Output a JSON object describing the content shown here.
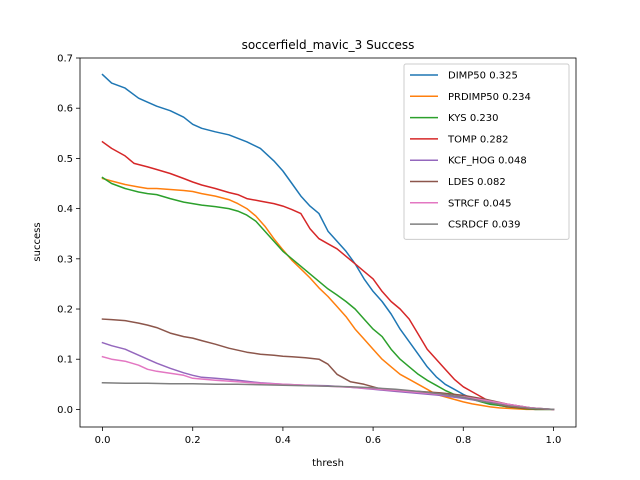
{
  "chart_data": {
    "type": "line",
    "title": "soccerfield_mavic_3 Success",
    "xlabel": "thresh",
    "ylabel": "success",
    "xlim": [
      -0.05,
      1.05
    ],
    "ylim": [
      -0.035,
      0.7
    ],
    "xticks": [
      0.0,
      0.2,
      0.4,
      0.6,
      0.8,
      1.0
    ],
    "xtick_labels": [
      "0.0",
      "0.2",
      "0.4",
      "0.6",
      "0.8",
      "1.0"
    ],
    "yticks": [
      0.0,
      0.1,
      0.2,
      0.3,
      0.4,
      0.5,
      0.6,
      0.7
    ],
    "ytick_labels": [
      "0.0",
      "0.1",
      "0.2",
      "0.3",
      "0.4",
      "0.5",
      "0.6",
      "0.7"
    ],
    "grid": false,
    "legend_position": "top-right",
    "series": [
      {
        "name": "DIMP50 0.325",
        "color": "#1f77b4",
        "x": [
          0.0,
          0.02,
          0.05,
          0.08,
          0.1,
          0.12,
          0.15,
          0.18,
          0.2,
          0.22,
          0.25,
          0.28,
          0.3,
          0.32,
          0.35,
          0.38,
          0.4,
          0.42,
          0.44,
          0.46,
          0.48,
          0.5,
          0.52,
          0.54,
          0.56,
          0.58,
          0.6,
          0.62,
          0.64,
          0.66,
          0.68,
          0.7,
          0.72,
          0.74,
          0.76,
          0.78,
          0.8,
          0.82,
          0.84,
          0.86,
          0.88,
          0.9,
          0.92,
          0.94,
          0.96,
          1.0
        ],
        "y": [
          0.667,
          0.65,
          0.64,
          0.62,
          0.612,
          0.604,
          0.595,
          0.582,
          0.568,
          0.56,
          0.553,
          0.547,
          0.54,
          0.533,
          0.52,
          0.495,
          0.475,
          0.45,
          0.425,
          0.405,
          0.39,
          0.355,
          0.335,
          0.315,
          0.29,
          0.26,
          0.235,
          0.215,
          0.19,
          0.16,
          0.135,
          0.11,
          0.085,
          0.065,
          0.05,
          0.04,
          0.03,
          0.022,
          0.016,
          0.012,
          0.008,
          0.005,
          0.003,
          0.001,
          0.0,
          0.0
        ]
      },
      {
        "name": "PRDIMP50 0.234",
        "color": "#ff7f0e",
        "x": [
          0.0,
          0.02,
          0.05,
          0.08,
          0.1,
          0.12,
          0.15,
          0.18,
          0.2,
          0.22,
          0.25,
          0.28,
          0.3,
          0.32,
          0.34,
          0.36,
          0.38,
          0.4,
          0.42,
          0.44,
          0.46,
          0.48,
          0.5,
          0.52,
          0.54,
          0.56,
          0.58,
          0.6,
          0.62,
          0.64,
          0.66,
          0.68,
          0.7,
          0.72,
          0.74,
          0.76,
          0.78,
          0.8,
          0.82,
          0.84,
          0.86,
          0.88,
          0.9,
          0.92,
          0.94,
          0.96,
          1.0
        ],
        "y": [
          0.46,
          0.455,
          0.448,
          0.443,
          0.44,
          0.44,
          0.438,
          0.436,
          0.434,
          0.43,
          0.425,
          0.418,
          0.41,
          0.4,
          0.385,
          0.365,
          0.34,
          0.318,
          0.297,
          0.28,
          0.262,
          0.242,
          0.225,
          0.205,
          0.185,
          0.16,
          0.14,
          0.12,
          0.1,
          0.085,
          0.07,
          0.06,
          0.05,
          0.04,
          0.03,
          0.025,
          0.02,
          0.015,
          0.011,
          0.008,
          0.005,
          0.003,
          0.002,
          0.001,
          0.0,
          0.0,
          0.0
        ]
      },
      {
        "name": "KYS 0.230",
        "color": "#2ca02c",
        "x": [
          0.0,
          0.02,
          0.05,
          0.08,
          0.1,
          0.12,
          0.15,
          0.18,
          0.2,
          0.22,
          0.25,
          0.28,
          0.3,
          0.32,
          0.34,
          0.36,
          0.38,
          0.4,
          0.42,
          0.44,
          0.46,
          0.48,
          0.5,
          0.52,
          0.54,
          0.56,
          0.58,
          0.6,
          0.62,
          0.64,
          0.66,
          0.68,
          0.7,
          0.72,
          0.74,
          0.76,
          0.78,
          0.8,
          0.82,
          0.84,
          0.86,
          0.88,
          0.9,
          0.92,
          0.94,
          0.96,
          1.0
        ],
        "y": [
          0.462,
          0.45,
          0.44,
          0.433,
          0.43,
          0.428,
          0.42,
          0.413,
          0.41,
          0.407,
          0.404,
          0.4,
          0.395,
          0.387,
          0.375,
          0.355,
          0.335,
          0.315,
          0.3,
          0.285,
          0.27,
          0.255,
          0.24,
          0.228,
          0.215,
          0.2,
          0.18,
          0.16,
          0.145,
          0.12,
          0.1,
          0.085,
          0.07,
          0.058,
          0.048,
          0.038,
          0.03,
          0.025,
          0.02,
          0.015,
          0.01,
          0.008,
          0.005,
          0.003,
          0.001,
          0.0,
          0.0
        ]
      },
      {
        "name": "TOMP 0.282",
        "color": "#d62728",
        "x": [
          0.0,
          0.02,
          0.05,
          0.07,
          0.1,
          0.12,
          0.15,
          0.18,
          0.2,
          0.22,
          0.25,
          0.28,
          0.3,
          0.32,
          0.35,
          0.38,
          0.4,
          0.42,
          0.44,
          0.46,
          0.48,
          0.5,
          0.52,
          0.54,
          0.56,
          0.58,
          0.6,
          0.62,
          0.64,
          0.66,
          0.68,
          0.7,
          0.72,
          0.74,
          0.76,
          0.78,
          0.8,
          0.82,
          0.84,
          0.86,
          0.88,
          0.9,
          0.92,
          0.94,
          0.96,
          1.0
        ],
        "y": [
          0.533,
          0.52,
          0.505,
          0.49,
          0.483,
          0.478,
          0.47,
          0.46,
          0.453,
          0.447,
          0.44,
          0.432,
          0.428,
          0.42,
          0.415,
          0.41,
          0.405,
          0.398,
          0.39,
          0.36,
          0.34,
          0.33,
          0.32,
          0.305,
          0.29,
          0.275,
          0.26,
          0.235,
          0.215,
          0.2,
          0.18,
          0.15,
          0.12,
          0.1,
          0.08,
          0.06,
          0.045,
          0.035,
          0.025,
          0.015,
          0.01,
          0.006,
          0.004,
          0.002,
          0.001,
          0.0
        ]
      },
      {
        "name": "KCF_HOG 0.048",
        "color": "#9467bd",
        "x": [
          0.0,
          0.02,
          0.05,
          0.08,
          0.1,
          0.12,
          0.15,
          0.18,
          0.2,
          0.22,
          0.25,
          0.3,
          0.35,
          0.4,
          0.45,
          0.5,
          0.55,
          0.6,
          0.65,
          0.7,
          0.75,
          0.8,
          0.85,
          0.9,
          0.95,
          1.0
        ],
        "y": [
          0.133,
          0.127,
          0.12,
          0.108,
          0.1,
          0.092,
          0.082,
          0.073,
          0.068,
          0.064,
          0.062,
          0.058,
          0.053,
          0.05,
          0.048,
          0.047,
          0.044,
          0.04,
          0.036,
          0.032,
          0.028,
          0.022,
          0.015,
          0.01,
          0.003,
          0.0
        ]
      },
      {
        "name": "LDES 0.082",
        "color": "#8c564b",
        "x": [
          0.0,
          0.02,
          0.05,
          0.08,
          0.1,
          0.12,
          0.15,
          0.18,
          0.2,
          0.22,
          0.25,
          0.28,
          0.3,
          0.32,
          0.35,
          0.38,
          0.4,
          0.42,
          0.45,
          0.48,
          0.5,
          0.52,
          0.55,
          0.58,
          0.6,
          0.62,
          0.65,
          0.7,
          0.75,
          0.8,
          0.85,
          0.9,
          0.95,
          1.0
        ],
        "y": [
          0.18,
          0.179,
          0.177,
          0.172,
          0.168,
          0.163,
          0.152,
          0.145,
          0.142,
          0.137,
          0.13,
          0.122,
          0.118,
          0.114,
          0.11,
          0.108,
          0.106,
          0.105,
          0.103,
          0.1,
          0.09,
          0.07,
          0.055,
          0.05,
          0.045,
          0.04,
          0.038,
          0.036,
          0.033,
          0.028,
          0.02,
          0.01,
          0.003,
          0.0
        ]
      },
      {
        "name": "STRCF 0.045",
        "color": "#e377c2",
        "x": [
          0.0,
          0.02,
          0.05,
          0.08,
          0.1,
          0.12,
          0.15,
          0.18,
          0.2,
          0.25,
          0.3,
          0.35,
          0.4,
          0.45,
          0.5,
          0.55,
          0.6,
          0.65,
          0.7,
          0.75,
          0.8,
          0.85,
          0.9,
          0.95,
          1.0
        ],
        "y": [
          0.105,
          0.1,
          0.096,
          0.088,
          0.08,
          0.076,
          0.072,
          0.068,
          0.062,
          0.058,
          0.055,
          0.052,
          0.05,
          0.048,
          0.046,
          0.044,
          0.041,
          0.038,
          0.034,
          0.03,
          0.025,
          0.018,
          0.01,
          0.003,
          0.0
        ]
      },
      {
        "name": "CSRDCF 0.039",
        "color": "#7f7f7f",
        "x": [
          0.0,
          0.05,
          0.1,
          0.15,
          0.2,
          0.25,
          0.3,
          0.35,
          0.4,
          0.45,
          0.5,
          0.55,
          0.6,
          0.65,
          0.7,
          0.75,
          0.8,
          0.85,
          0.9,
          0.95,
          1.0
        ],
        "y": [
          0.053,
          0.052,
          0.052,
          0.051,
          0.051,
          0.05,
          0.05,
          0.049,
          0.048,
          0.047,
          0.046,
          0.045,
          0.043,
          0.04,
          0.036,
          0.031,
          0.024,
          0.015,
          0.007,
          0.002,
          0.0
        ]
      }
    ]
  }
}
